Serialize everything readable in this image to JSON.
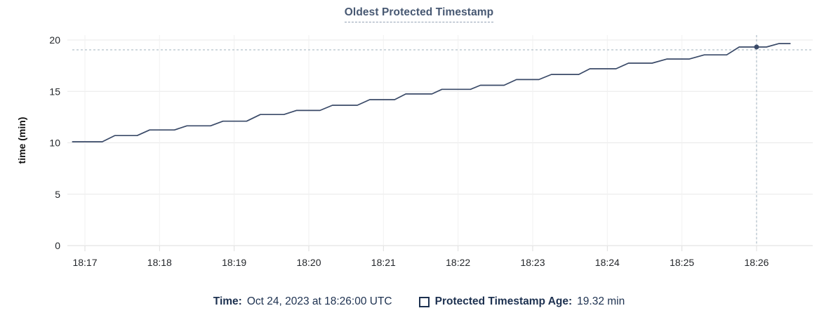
{
  "chart": {
    "title": "Oldest Protected Timestamp",
    "y_axis_label": "time (min)"
  },
  "tooltip_legend": {
    "time_label": "Time:",
    "time_value": "Oct 24, 2023 at 18:26:00 UTC",
    "series_label": "Protected Timestamp Age:",
    "series_value": "19.32 min"
  },
  "colors": {
    "title_accent": "#475872",
    "line": "#3a4a68",
    "legend_text": "#1d3150",
    "crosshair": "#9fb0bd",
    "grid_horizontal": "#e8e8e8",
    "grid_vertical": "#f1f1f1",
    "axis": "#dedede",
    "tick_text": "#24272b"
  },
  "chart_data": {
    "type": "line",
    "title": "Oldest Protected Timestamp",
    "xlabel": "",
    "ylabel": "time (min)",
    "ylim": [
      0,
      20
    ],
    "y_ticks": [
      0,
      5,
      10,
      15,
      20
    ],
    "grid": true,
    "legend_position": "bottom",
    "x_axis": {
      "tick_labels": [
        "18:17",
        "18:18",
        "18:19",
        "18:20",
        "18:21",
        "18:22",
        "18:23",
        "18:24",
        "18:25",
        "18:26"
      ],
      "tick_interval_seconds": 60
    },
    "series": [
      {
        "name": "Protected Timestamp Age",
        "unit": "min",
        "color": "#3a4a68",
        "points_t_seconds_from_18_17_and_minutes": [
          [
            -10,
            10.1
          ],
          [
            14,
            10.1
          ],
          [
            24,
            10.7
          ],
          [
            42,
            10.7
          ],
          [
            52,
            11.25
          ],
          [
            72,
            11.25
          ],
          [
            82,
            11.65
          ],
          [
            101,
            11.65
          ],
          [
            111,
            12.1
          ],
          [
            130,
            12.1
          ],
          [
            141,
            12.75
          ],
          [
            160,
            12.75
          ],
          [
            170,
            13.15
          ],
          [
            189,
            13.15
          ],
          [
            199,
            13.65
          ],
          [
            219,
            13.65
          ],
          [
            229,
            14.2
          ],
          [
            249,
            14.2
          ],
          [
            258,
            14.75
          ],
          [
            279,
            14.75
          ],
          [
            287,
            15.2
          ],
          [
            310,
            15.2
          ],
          [
            318,
            15.6
          ],
          [
            337,
            15.6
          ],
          [
            347,
            16.15
          ],
          [
            365,
            16.15
          ],
          [
            375,
            16.65
          ],
          [
            397,
            16.65
          ],
          [
            406,
            17.2
          ],
          [
            427,
            17.2
          ],
          [
            437,
            17.75
          ],
          [
            456,
            17.75
          ],
          [
            468,
            18.15
          ],
          [
            486,
            18.15
          ],
          [
            498,
            18.55
          ],
          [
            516,
            18.55
          ],
          [
            526,
            19.32
          ],
          [
            548,
            19.32
          ],
          [
            558,
            19.65
          ],
          [
            567,
            19.65
          ]
        ]
      }
    ],
    "highlight": {
      "t_seconds_from_18_17": 540,
      "time_text": "Oct 24, 2023 at 18:26:00 UTC",
      "value_minutes": 19.32
    }
  }
}
